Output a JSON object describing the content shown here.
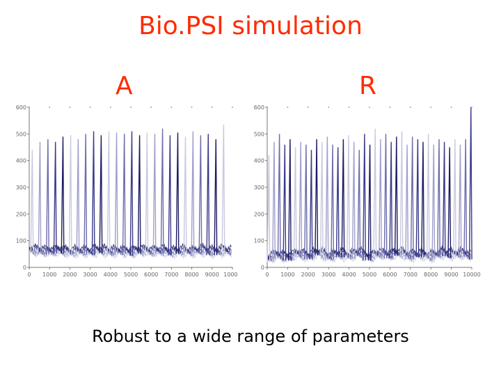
{
  "slide": {
    "title": "Bio.PSI simulation",
    "caption": "Robust to a wide range of parameters"
  },
  "chart_data": [
    {
      "type": "line",
      "panel_label": "A",
      "xlim": [
        0,
        10000
      ],
      "ylim": [
        0,
        600
      ],
      "x_ticks": [
        0,
        1000,
        2000,
        3000,
        4000,
        5000,
        6000,
        7000,
        8000,
        9000,
        10000
      ],
      "x_tick_labels": [
        "0",
        "1000",
        "2000",
        "3000",
        "4000",
        "5000",
        "6000",
        "7000",
        "8000",
        "9000",
        "10000"
      ],
      "y_ticks": [
        0,
        100,
        200,
        300,
        400,
        500,
        600
      ],
      "y_tick_labels": [
        "0",
        "100",
        "200",
        "300",
        "400",
        "500",
        "600"
      ],
      "grid": false,
      "colors": [
        "#c9c9e0",
        "#9f9fcb",
        "#6c6cab",
        "#3a3a8a",
        "#1c1c63"
      ],
      "pattern": "regular oscillations: baseline about 40-60, sharp spikes to about 400-540 roughly every 380 time units",
      "spike_peaks": [
        {
          "x": 150,
          "y": 440
        },
        {
          "x": 530,
          "y": 470
        },
        {
          "x": 920,
          "y": 480
        },
        {
          "x": 1290,
          "y": 470
        },
        {
          "x": 1660,
          "y": 490
        },
        {
          "x": 2040,
          "y": 495
        },
        {
          "x": 2410,
          "y": 480
        },
        {
          "x": 2780,
          "y": 500
        },
        {
          "x": 3170,
          "y": 510
        },
        {
          "x": 3540,
          "y": 495
        },
        {
          "x": 3920,
          "y": 510
        },
        {
          "x": 4300,
          "y": 505
        },
        {
          "x": 4680,
          "y": 500
        },
        {
          "x": 5050,
          "y": 510
        },
        {
          "x": 5430,
          "y": 495
        },
        {
          "x": 5800,
          "y": 505
        },
        {
          "x": 6180,
          "y": 500
        },
        {
          "x": 6560,
          "y": 520
        },
        {
          "x": 6930,
          "y": 495
        },
        {
          "x": 7310,
          "y": 505
        },
        {
          "x": 7690,
          "y": 490
        },
        {
          "x": 8060,
          "y": 510
        },
        {
          "x": 8440,
          "y": 495
        },
        {
          "x": 8810,
          "y": 500
        },
        {
          "x": 9190,
          "y": 480
        },
        {
          "x": 9570,
          "y": 535
        }
      ],
      "baseline_x": [
        0,
        500,
        1000,
        1500,
        2000,
        2500,
        3000,
        3500,
        4000,
        4500,
        5000,
        5500,
        6000,
        6500,
        7000,
        7500,
        8000,
        8500,
        9000,
        9500,
        10000
      ],
      "baseline_y": [
        55,
        50,
        48,
        52,
        45,
        50,
        47,
        53,
        46,
        50,
        44,
        52,
        48,
        51,
        45,
        50,
        47,
        52,
        46,
        50,
        48
      ]
    },
    {
      "type": "line",
      "panel_label": "R",
      "xlim": [
        0,
        10000
      ],
      "ylim": [
        0,
        600
      ],
      "x_ticks": [
        0,
        1000,
        2000,
        3000,
        4000,
        5000,
        6000,
        7000,
        8000,
        9000,
        10000
      ],
      "x_tick_labels": [
        "0",
        "1000",
        "2000",
        "3000",
        "4000",
        "5000",
        "6000",
        "7000",
        "8000",
        "9000",
        "10000"
      ],
      "y_ticks": [
        0,
        100,
        200,
        300,
        400,
        500,
        600
      ],
      "y_tick_labels": [
        "0",
        "100",
        "200",
        "300",
        "400",
        "500",
        "600"
      ],
      "grid": false,
      "colors": [
        "#c9c9e0",
        "#9f9fcb",
        "#6c6cab",
        "#3a3a8a",
        "#1c1c63"
      ],
      "pattern": "denser, more irregular oscillations: spikes to about 250-500 roughly every 260 time units over a low noisy baseline",
      "spike_peaks": [
        {
          "x": 80,
          "y": 420
        },
        {
          "x": 340,
          "y": 470
        },
        {
          "x": 600,
          "y": 500
        },
        {
          "x": 860,
          "y": 460
        },
        {
          "x": 1120,
          "y": 480
        },
        {
          "x": 1380,
          "y": 450
        },
        {
          "x": 1640,
          "y": 470
        },
        {
          "x": 1900,
          "y": 460
        },
        {
          "x": 2160,
          "y": 440
        },
        {
          "x": 2420,
          "y": 480
        },
        {
          "x": 2680,
          "y": 470
        },
        {
          "x": 2940,
          "y": 490
        },
        {
          "x": 3200,
          "y": 460
        },
        {
          "x": 3460,
          "y": 450
        },
        {
          "x": 3720,
          "y": 480
        },
        {
          "x": 3980,
          "y": 495
        },
        {
          "x": 4240,
          "y": 470
        },
        {
          "x": 4500,
          "y": 440
        },
        {
          "x": 4760,
          "y": 500
        },
        {
          "x": 5020,
          "y": 460
        },
        {
          "x": 5280,
          "y": 520
        },
        {
          "x": 5540,
          "y": 480
        },
        {
          "x": 5800,
          "y": 500
        },
        {
          "x": 6060,
          "y": 470
        },
        {
          "x": 6320,
          "y": 490
        },
        {
          "x": 6580,
          "y": 510
        },
        {
          "x": 6840,
          "y": 460
        },
        {
          "x": 7100,
          "y": 490
        },
        {
          "x": 7360,
          "y": 480
        },
        {
          "x": 7620,
          "y": 470
        },
        {
          "x": 7880,
          "y": 500
        },
        {
          "x": 8140,
          "y": 460
        },
        {
          "x": 8400,
          "y": 480
        },
        {
          "x": 8660,
          "y": 470
        },
        {
          "x": 8920,
          "y": 450
        },
        {
          "x": 9180,
          "y": 480
        },
        {
          "x": 9440,
          "y": 460
        },
        {
          "x": 9700,
          "y": 480
        },
        {
          "x": 9960,
          "y": 600
        }
      ],
      "baseline_x": [
        0,
        500,
        1000,
        1500,
        2000,
        2500,
        3000,
        3500,
        4000,
        4500,
        5000,
        5500,
        6000,
        6500,
        7000,
        7500,
        8000,
        8500,
        9000,
        9500,
        10000
      ],
      "baseline_y": [
        20,
        35,
        25,
        40,
        30,
        45,
        28,
        38,
        32,
        42,
        26,
        40,
        34,
        44,
        30,
        38,
        28,
        42,
        36,
        40,
        30
      ]
    }
  ]
}
